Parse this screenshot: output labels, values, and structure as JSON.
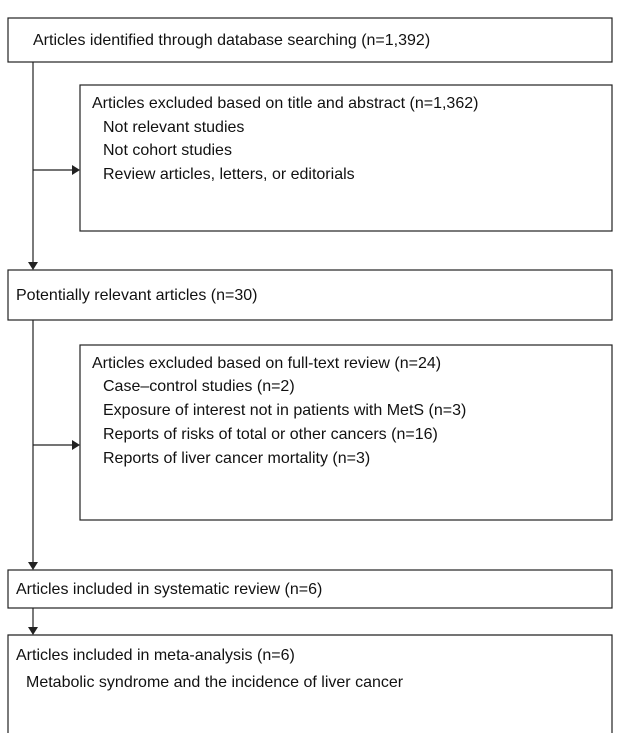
{
  "boxes": [
    {
      "title": "Articles identified through database searching (n=1,392)"
    },
    {
      "title": "Articles excluded based on title and abstract (n=1,362)",
      "items": [
        "Not relevant studies",
        "Not cohort studies",
        "Review articles, letters, or editorials"
      ]
    },
    {
      "title": "Potentially relevant articles (n=30)"
    },
    {
      "title": "Articles excluded based on full-text review (n=24)",
      "items": [
        "Case–control studies (n=2)",
        "Exposure of interest not in patients with MetS (n=3)",
        "Reports of risks of total or other cancers (n=16)",
        "Reports of liver cancer mortality (n=3)"
      ]
    },
    {
      "title": "Articles included in systematic review (n=6)"
    },
    {
      "title": "Articles included in meta-analysis (n=6)",
      "items": [
        "Metabolic syndrome and the incidence of liver cancer"
      ]
    }
  ]
}
